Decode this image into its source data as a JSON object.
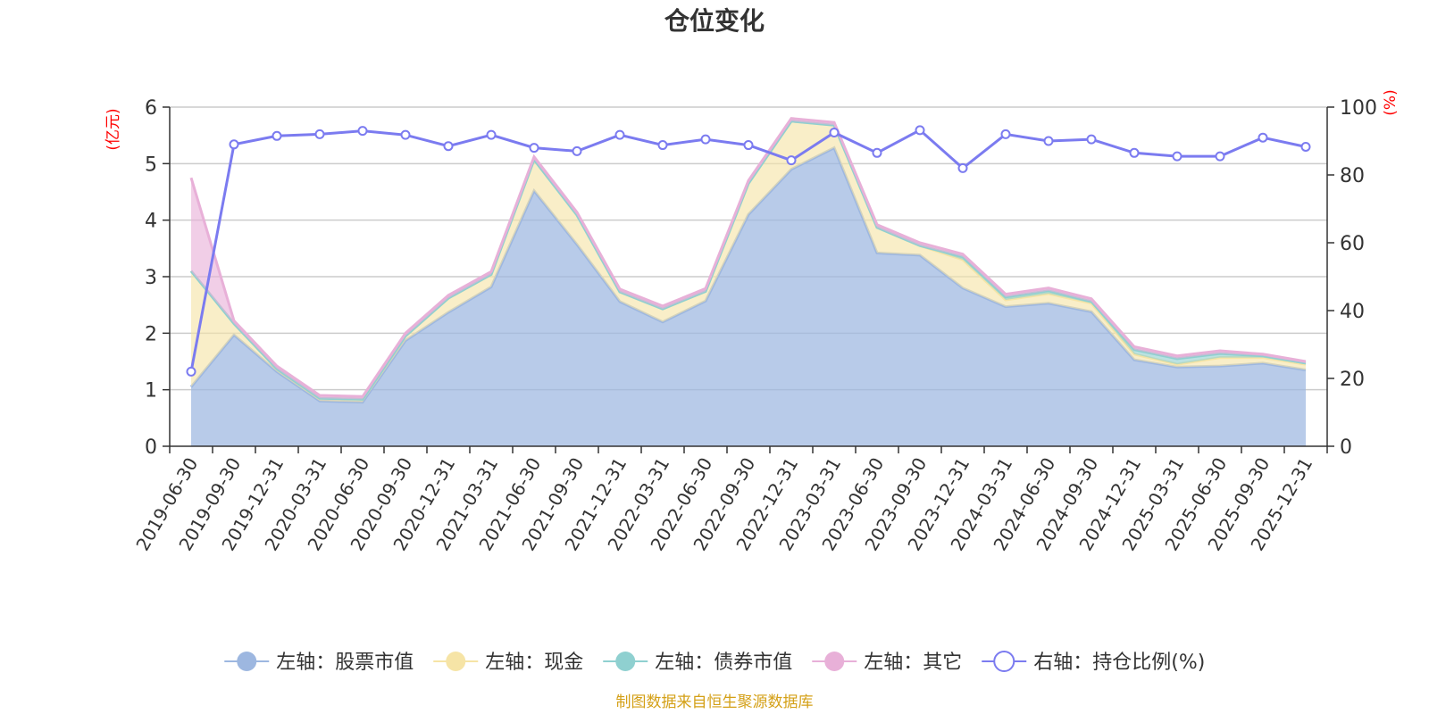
{
  "chart_data": {
    "type": "area",
    "title": "仓位变化",
    "left_unit": "(亿元)",
    "right_unit": "(%)",
    "source": "制图数据来自恒生聚源数据库",
    "categories": [
      "2019-06-30",
      "2019-09-30",
      "2019-12-31",
      "2020-03-31",
      "2020-06-30",
      "2020-09-30",
      "2020-12-31",
      "2021-03-31",
      "2021-06-30",
      "2021-09-30",
      "2021-12-31",
      "2022-03-31",
      "2022-06-30",
      "2022-09-30",
      "2022-12-31",
      "2023-03-31",
      "2023-06-30",
      "2023-09-30",
      "2023-12-31",
      "2024-03-31",
      "2024-06-30",
      "2024-09-30",
      "2024-12-31",
      "2025-03-31",
      "2025-06-30",
      "2025-09-30",
      "2025-12-31"
    ],
    "ylim_left": [
      0,
      6
    ],
    "ylim_right": [
      0,
      100
    ],
    "yticks_left": [
      "0",
      "1",
      "2",
      "3",
      "4",
      "5",
      "6"
    ],
    "yticks_right": [
      "0",
      "20",
      "40",
      "60",
      "80",
      "100"
    ],
    "grid": true,
    "legend_position": "bottom",
    "series": [
      {
        "name": "左轴：股票市值",
        "axis": "left",
        "stacked": true,
        "color": "#9db7e0",
        "values": [
          1.05,
          1.97,
          1.32,
          0.8,
          0.78,
          1.87,
          2.37,
          2.82,
          4.52,
          3.57,
          2.56,
          2.2,
          2.57,
          4.1,
          4.9,
          5.28,
          3.42,
          3.38,
          2.8,
          2.47,
          2.53,
          2.38,
          1.53,
          1.4,
          1.42,
          1.47,
          1.35
        ]
      },
      {
        "name": "左轴：现金",
        "axis": "left",
        "stacked": true,
        "color": "#f6e4a6",
        "values": [
          2.05,
          0.2,
          0.05,
          0.05,
          0.05,
          0.08,
          0.25,
          0.22,
          0.55,
          0.52,
          0.17,
          0.23,
          0.17,
          0.55,
          0.85,
          0.4,
          0.45,
          0.17,
          0.5,
          0.12,
          0.17,
          0.15,
          0.1,
          0.05,
          0.15,
          0.1,
          0.1
        ]
      },
      {
        "name": "左轴：债券市值",
        "axis": "left",
        "stacked": true,
        "color": "#8fd0d0",
        "values": [
          0,
          0,
          0,
          0,
          0,
          0,
          0,
          0,
          0,
          0,
          0,
          0,
          0,
          0,
          0,
          0,
          0,
          0,
          0.05,
          0.05,
          0.05,
          0.03,
          0.08,
          0.1,
          0.07,
          0.03,
          0.02
        ]
      },
      {
        "name": "左轴：其它",
        "axis": "left",
        "stacked": true,
        "color": "#e8b0d8",
        "values": [
          1.65,
          0.05,
          0.05,
          0.05,
          0.05,
          0.05,
          0.05,
          0.05,
          0.05,
          0.05,
          0.05,
          0.05,
          0.05,
          0.05,
          0.05,
          0.05,
          0.05,
          0.05,
          0.05,
          0.05,
          0.05,
          0.05,
          0.05,
          0.05,
          0.05,
          0.03,
          0.03
        ]
      },
      {
        "name": "右轴：持仓比例(%)",
        "axis": "right",
        "type": "line",
        "color": "#7b7bf0",
        "values": [
          22.0,
          89.0,
          91.5,
          92.0,
          93.0,
          91.8,
          88.5,
          91.8,
          88.0,
          87.0,
          91.8,
          88.8,
          90.5,
          88.8,
          84.3,
          92.5,
          86.5,
          93.2,
          82.0,
          92.0,
          90.0,
          90.5,
          86.5,
          85.5,
          85.5,
          91.0,
          88.3
        ]
      }
    ]
  }
}
